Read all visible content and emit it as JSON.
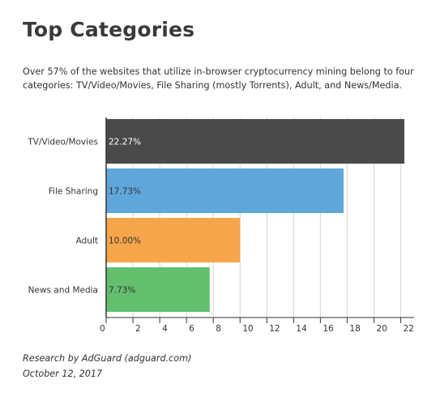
{
  "title": "Top Categories",
  "subtitle": "Over 57% of the websites that utilize in-browser cryptocurrency mining belong to four categories: TV/Video/Movies, File Sharing (mostly Torrents), Adult, and News/Media.",
  "footer": {
    "research": "Research by AdGuard (adguard.com)",
    "date": "October 12, 2017"
  },
  "chart_data": {
    "type": "bar",
    "orientation": "horizontal",
    "categories": [
      "TV/Video/Movies",
      "File Sharing",
      "Adult",
      "News and Media"
    ],
    "values": [
      22.27,
      17.73,
      10.0,
      7.73
    ],
    "data_labels": [
      "22.27%",
      "17.73%",
      "10.00%",
      "7.73%"
    ],
    "colors": [
      "#4a4a4a",
      "#5fa6da",
      "#f7a54a",
      "#62bf6e"
    ],
    "xlim": [
      0,
      23
    ],
    "xticks": [
      0,
      2,
      4,
      6,
      8,
      10,
      12,
      14,
      16,
      18,
      20,
      22
    ],
    "grid": true,
    "legend": "none",
    "title": "Top Categories",
    "xlabel": "",
    "ylabel": ""
  }
}
